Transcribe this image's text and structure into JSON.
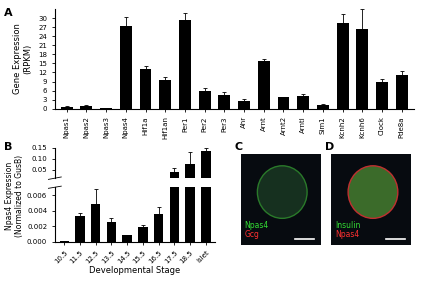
{
  "chart_data": [
    {
      "panel": "A",
      "type": "bar",
      "categories": [
        "Npas1",
        "Npas2",
        "Npas3",
        "Npas4",
        "Hif1a",
        "Hif1an",
        "Per1",
        "Per2",
        "Per3",
        "Ahr",
        "Arnt",
        "Arnt2",
        "Arntl",
        "Sim1",
        "Kcnh2",
        "Kcnh6",
        "Clock",
        "Pde8a"
      ],
      "values": [
        0.6,
        1.0,
        0.2,
        27.5,
        13.2,
        9.5,
        29.5,
        5.8,
        4.5,
        2.5,
        15.7,
        3.8,
        4.3,
        1.2,
        28.5,
        26.5,
        9.0,
        11.3
      ],
      "errors": [
        0.2,
        0.3,
        0.1,
        3.0,
        1.0,
        1.0,
        2.2,
        1.0,
        1.0,
        0.8,
        0.7,
        0.2,
        0.5,
        0.3,
        3.0,
        6.5,
        0.8,
        1.2
      ],
      "color": "#000000",
      "y_label": "Gene Expression\n(RPKM)",
      "ylim": [
        0,
        33
      ],
      "yticks": [
        0,
        3,
        6,
        9,
        12,
        15,
        18,
        21,
        24,
        27,
        30
      ]
    },
    {
      "panel": "B",
      "type": "bar",
      "categories": [
        "10.5",
        "11.5",
        "12.5",
        "13.5",
        "14.5",
        "15.5",
        "16.5",
        "17.5",
        "18.5",
        "Islet"
      ],
      "values": [
        5e-05,
        0.0033,
        0.0048,
        0.0025,
        0.0008,
        0.0019,
        0.0036,
        0.04,
        0.075,
        0.135
      ],
      "errors": [
        2e-05,
        0.0004,
        0.002,
        0.0005,
        0.0001,
        0.0003,
        0.0008,
        0.015,
        0.055,
        0.015
      ],
      "color": "#000000",
      "x_label": "Developmental Stage",
      "y_label": "Npas4 Expression\n(Normalized to GusB)",
      "axis_segments": [
        {
          "ylim": [
            0,
            0.007
          ],
          "yticks": [
            {
              "value": 0,
              "label": "0.000"
            },
            {
              "value": 0.002,
              "label": "0.002"
            },
            {
              "value": 0.004,
              "label": "0.004"
            },
            {
              "value": 0.006,
              "label": "0.006"
            }
          ]
        },
        {
          "ylim": [
            0.01,
            0.15
          ],
          "yticks": [
            {
              "value": 0.05,
              "label": "0.05"
            },
            {
              "value": 0.1,
              "label": "0.10"
            },
            {
              "value": 0.15,
              "label": "0.15"
            }
          ]
        }
      ]
    }
  ],
  "images": [
    {
      "panel": "C",
      "labels": [
        {
          "text": "Npas4",
          "color": "#33dd33"
        },
        {
          "text": "Gcg",
          "color": "#ff3030"
        }
      ]
    },
    {
      "panel": "D",
      "labels": [
        {
          "text": "Insulin",
          "color": "#33dd33"
        },
        {
          "text": "Npas4",
          "color": "#ff3030"
        }
      ]
    }
  ]
}
